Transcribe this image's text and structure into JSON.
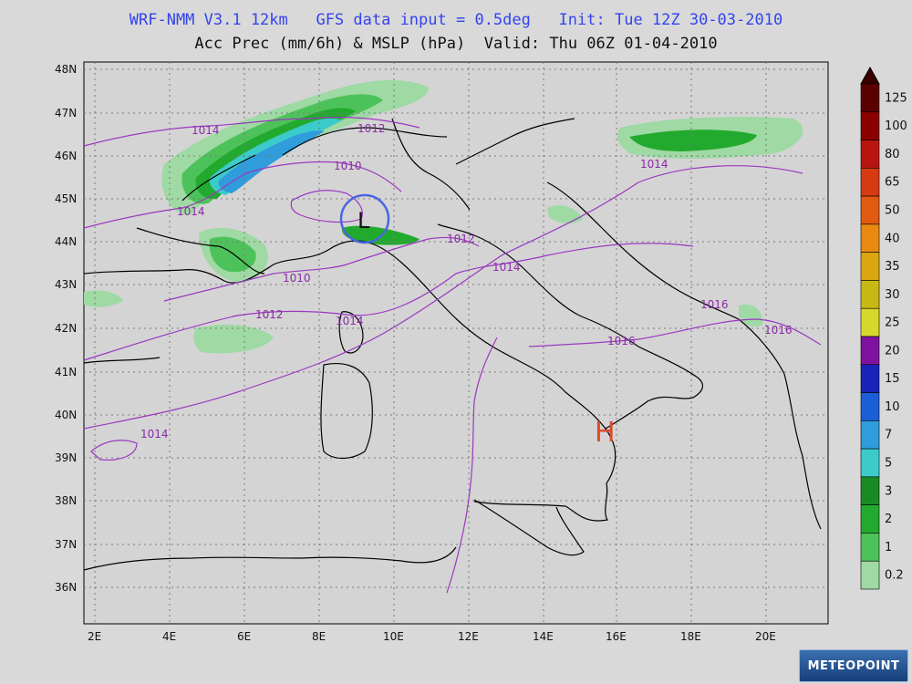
{
  "header": {
    "line1": "WRF-NMM V3.1 12km   GFS data input = 0.5deg   Init: Tue 12Z 30-03-2010",
    "line2": "Acc Prec (mm/6h) & MSLP (hPa)  Valid: Thu 06Z 01-04-2010"
  },
  "axes": {
    "lat_labels": [
      "48N",
      "47N",
      "46N",
      "45N",
      "44N",
      "43N",
      "42N",
      "41N",
      "40N",
      "39N",
      "38N",
      "37N",
      "36N"
    ],
    "lon_labels": [
      "2E",
      "4E",
      "6E",
      "8E",
      "10E",
      "12E",
      "14E",
      "16E",
      "18E",
      "20E"
    ]
  },
  "colorbar": {
    "labels": [
      "125",
      "100",
      "80",
      "65",
      "50",
      "40",
      "35",
      "30",
      "25",
      "20",
      "15",
      "10",
      "7",
      "5",
      "3",
      "2",
      "1",
      "0.2"
    ],
    "colors": [
      "#5a0000",
      "#8a0000",
      "#b81410",
      "#d63a10",
      "#e25a10",
      "#e88a10",
      "#dba510",
      "#c9b814",
      "#d8d82c",
      "#7f139f",
      "#1a23b8",
      "#1b5fd6",
      "#2f9cdb",
      "#3ccbcb",
      "#1a8a24",
      "#22aa2e",
      "#4ec25a",
      "#9fd9a4"
    ]
  },
  "isobars": {
    "labels": [
      "1014",
      "1012",
      "1010",
      "1014",
      "1010",
      "1012",
      "1014",
      "1012",
      "1014",
      "1014",
      "1016",
      "1016",
      "1016",
      "1014"
    ]
  },
  "pressure_centers": {
    "low": "L",
    "high": "H"
  },
  "colors": {
    "low": "#4a66e0",
    "high": "#e0482a",
    "isobar": "#8a2aa8",
    "coast": "#000000"
  },
  "logo": {
    "text": "METEOPOINT"
  }
}
